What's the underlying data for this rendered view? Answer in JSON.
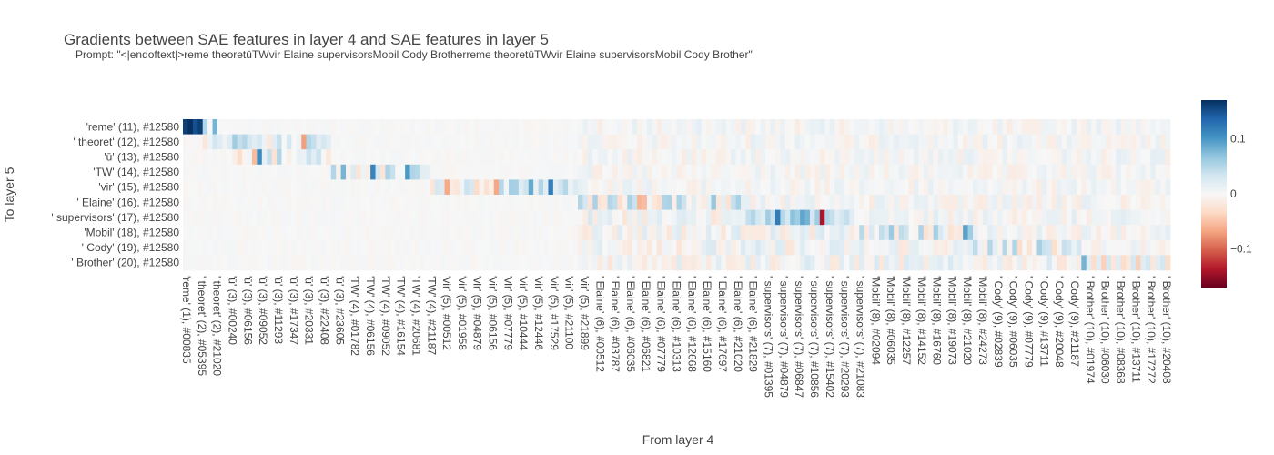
{
  "chart_data": {
    "type": "heatmap",
    "title": "Gradients between SAE features in layer 4 and SAE features in layer 5",
    "subtitle": "Prompt: \"<|endoftext|>reme theoretūTWvir Elaine supervisorsMobil Cody Brotherreme theoretūTWvir Elaine supervisorsMobil Cody Brother\"",
    "xlabel": "From layer 4",
    "ylabel": "To layer 5",
    "y_rows": [
      "'reme' (11), #12580",
      "' theoret' (12), #12580",
      "'ū' (13), #12580",
      "'TW' (14), #12580",
      "'vir' (15), #12580",
      "' Elaine' (16), #12580",
      "' supervisors' (17), #12580",
      "'Mobil' (18), #12580",
      "' Cody' (19), #12580",
      "' Brother' (20), #12580"
    ],
    "x_groups": [
      {
        "token": "'reme'",
        "pos": 1,
        "cols": 4
      },
      {
        "token": "' theoret'",
        "pos": 2,
        "cols": 6
      },
      {
        "token": "'ū'",
        "pos": 3,
        "cols": 20
      },
      {
        "token": "'TW'",
        "pos": 4,
        "cols": 20
      },
      {
        "token": "'vir'",
        "pos": 5,
        "cols": 30
      },
      {
        "token": "' Elaine'",
        "pos": 6,
        "cols": 34
      },
      {
        "token": "' supervisors'",
        "pos": 7,
        "cols": 22
      },
      {
        "token": "'Mobil'",
        "pos": 8,
        "cols": 24
      },
      {
        "token": "' Cody'",
        "pos": 9,
        "cols": 22
      },
      {
        "token": "' Brother'",
        "pos": 10,
        "cols": 18
      }
    ],
    "x_tick_labels": [
      "'reme' (1), #00835",
      "' theoret' (2), #05395",
      "' theoret' (2), #21020",
      "'ū' (3), #00240",
      "'ū' (3), #06156",
      "'ū' (3), #09052",
      "'ū' (3), #11293",
      "'ū' (3), #17347",
      "'ū' (3), #20331",
      "'ū' (3), #22408",
      "'ū' (3), #23605",
      "'TW' (4), #01782",
      "'TW' (4), #06156",
      "'TW' (4), #09052",
      "'TW' (4), #16154",
      "'TW' (4), #20681",
      "'TW' (4), #21187",
      "'vir' (5), #00512",
      "'vir' (5), #01958",
      "'vir' (5), #04879",
      "'vir' (5), #06156",
      "'vir' (5), #07779",
      "'vir' (5), #10444",
      "'vir' (5), #12446",
      "'vir' (5), #17529",
      "'vir' (5), #21100",
      "'vir' (5), #21899",
      "' Elaine' (6), #00512",
      "' Elaine' (6), #03787",
      "' Elaine' (6), #06035",
      "' Elaine' (6), #06821",
      "' Elaine' (6), #07779",
      "' Elaine' (6), #10313",
      "' Elaine' (6), #12668",
      "' Elaine' (6), #15160",
      "' Elaine' (6), #17697",
      "' Elaine' (6), #21020",
      "' Elaine' (6), #21829",
      "' supervisors' (7), #01395",
      "' supervisors' (7), #04879",
      "' supervisors' (7), #06847",
      "' supervisors' (7), #10856",
      "' supervisors' (7), #15402",
      "' supervisors' (7), #20293",
      "' supervisors' (7), #21083",
      "'Mobil' (8), #02094",
      "'Mobil' (8), #06035",
      "'Mobil' (8), #12257",
      "'Mobil' (8), #14152",
      "'Mobil' (8), #16760",
      "'Mobil' (8), #19073",
      "'Mobil' (8), #21020",
      "'Mobil' (8), #24273",
      "' Cody' (9), #02839",
      "' Cody' (9), #06035",
      "' Cody' (9), #07779",
      "' Cody' (9), #13711",
      "' Cody' (9), #20048",
      "' Cody' (9), #21187",
      "' Brother' (10), #01974",
      "' Brother' (10), #06030",
      "' Brother' (10), #08368",
      "' Brother' (10), #13711",
      "' Brother' (10), #17272",
      "' Brother' (10), #20408"
    ],
    "zrange": [
      -0.17,
      0.17
    ],
    "colorbar_ticks": [
      0.1,
      0,
      -0.1
    ],
    "colorbar_tick_labels": [
      "0.1",
      "0",
      "−0.1"
    ],
    "colorscale": "RdBu",
    "highlight_cells": [
      {
        "row": 0,
        "group": 0,
        "values": [
          0.16,
          0.17,
          0.15,
          0.16
        ]
      },
      {
        "row": 0,
        "group": 1,
        "values": [
          0.05,
          0.0,
          0.08,
          0.0,
          0.0,
          0.0
        ]
      },
      {
        "row": 1,
        "group": 2,
        "values": [
          0.06,
          0.04,
          0.05,
          0.03,
          0.02,
          0.03,
          0.01,
          -0.02,
          0.02,
          0.04,
          0.0,
          0.03,
          0.0,
          0.01,
          -0.07,
          0.05,
          0.04,
          0.02,
          0.03,
          0.02
        ]
      },
      {
        "row": 6,
        "group": 6,
        "values": [
          0.04,
          0.05,
          0.03,
          0.02,
          0.06,
          0.04,
          0.12,
          0.05,
          0.03,
          0.07,
          0.06,
          0.09,
          0.08,
          0.03,
          0.06,
          -0.14,
          0.05,
          0.04,
          0.02,
          0.03,
          0.04,
          0.02
        ]
      },
      {
        "row": 9,
        "group": 9,
        "values": [
          0.08,
          0.02,
          -0.03,
          0.02,
          -0.04,
          0.03,
          -0.02,
          0.02,
          -0.03,
          -0.02,
          0.03,
          -0.04,
          0.02,
          0.03,
          -0.02,
          0.02,
          0.03,
          -0.03
        ]
      }
    ]
  }
}
